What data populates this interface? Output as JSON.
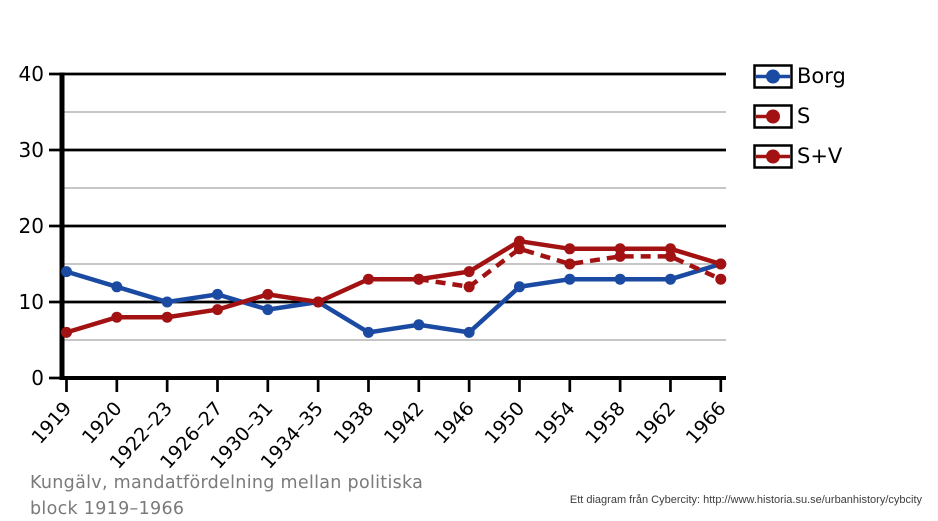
{
  "title": {
    "lines": [
      "Kungälv, mandatfördelning mellan politiska",
      "block 1919–1966"
    ]
  },
  "attribution": {
    "text": "Ett diagram från Cybercity: http://www.historia.su.se/urbanhistory/cybcity"
  },
  "legend": {
    "position": "top-right",
    "items": [
      {
        "label": "Borg",
        "color": "#1b4aa2",
        "line_style": "solid"
      },
      {
        "label": "S",
        "color": "#a31212",
        "line_style": "dashed"
      },
      {
        "label": "S+V",
        "color": "#a31212",
        "line_style": "solid"
      }
    ]
  },
  "chart_data": {
    "type": "line",
    "categories": [
      "1919",
      "1920",
      "1922–23",
      "1926–27",
      "1930–31",
      "1934–35",
      "1938",
      "1942",
      "1946",
      "1950",
      "1954",
      "1958",
      "1962",
      "1966"
    ],
    "series": [
      {
        "name": "Borg",
        "color": "#1b4aa2",
        "line_style": "solid",
        "values": [
          14,
          12,
          10,
          11,
          9,
          10,
          6,
          7,
          6,
          12,
          13,
          13,
          13,
          15
        ]
      },
      {
        "name": "S",
        "color": "#a31212",
        "line_style": "dashed",
        "values": [
          null,
          null,
          null,
          null,
          null,
          null,
          null,
          13,
          12,
          17,
          15,
          16,
          16,
          13
        ]
      },
      {
        "name": "S+V",
        "color": "#a31212",
        "line_style": "solid",
        "values": [
          6,
          8,
          8,
          9,
          11,
          10,
          13,
          13,
          14,
          18,
          17,
          17,
          17,
          15
        ]
      }
    ],
    "ylim": [
      0,
      40
    ],
    "y_major_ticks": [
      0,
      10,
      20,
      30,
      40
    ],
    "y_minor_gridlines": [
      5,
      15,
      25,
      35
    ],
    "grid": true,
    "marker": "circle",
    "legend_position": "top-right",
    "colors": {
      "major_gridline": "#000000",
      "minor_gridline": "#b3b3b3",
      "axis": "#000000"
    }
  }
}
